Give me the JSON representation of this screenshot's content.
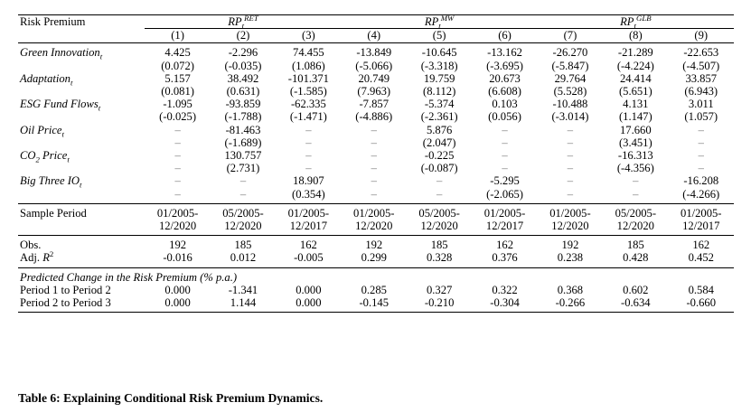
{
  "header": {
    "label": "Risk Premium",
    "groups": [
      {
        "base": "RP",
        "sup": "RET",
        "sub": "t"
      },
      {
        "base": "RP",
        "sup": "MW",
        "sub": "t"
      },
      {
        "base": "RP",
        "sup": "GLB",
        "sub": "t"
      }
    ],
    "columns": [
      "(1)",
      "(2)",
      "(3)",
      "(4)",
      "(5)",
      "(6)",
      "(7)",
      "(8)",
      "(9)"
    ]
  },
  "variables": [
    {
      "name": "Green Innovation",
      "sub": "t",
      "coef": [
        "4.425",
        "-2.296",
        "74.455",
        "-13.849",
        "-10.645",
        "-13.162",
        "-26.270",
        "-21.289",
        "-22.653"
      ],
      "tstat": [
        "(0.072)",
        "(-0.035)",
        "(1.086)",
        "(-5.066)",
        "(-3.318)",
        "(-3.695)",
        "(-5.847)",
        "(-4.224)",
        "(-4.507)"
      ]
    },
    {
      "name": "Adaptation",
      "sub": "t",
      "coef": [
        "5.157",
        "38.492",
        "-101.371",
        "20.749",
        "19.759",
        "20.673",
        "29.764",
        "24.414",
        "33.857"
      ],
      "tstat": [
        "(0.081)",
        "(0.631)",
        "(-1.585)",
        "(7.963)",
        "(8.112)",
        "(6.608)",
        "(5.528)",
        "(5.651)",
        "(6.943)"
      ]
    },
    {
      "name": "ESG Fund Flows",
      "sub": "t",
      "coef": [
        "-1.095",
        "-93.859",
        "-62.335",
        "-7.857",
        "-5.374",
        "0.103",
        "-10.488",
        "4.131",
        "3.011"
      ],
      "tstat": [
        "(-0.025)",
        "(-1.788)",
        "(-1.471)",
        "(-4.886)",
        "(-2.361)",
        "(0.056)",
        "(-3.014)",
        "(1.147)",
        "(1.057)"
      ]
    },
    {
      "name": "Oil Price",
      "sub": "t",
      "coef": [
        "–",
        "-81.463",
        "–",
        "–",
        "5.876",
        "–",
        "–",
        "17.660",
        "–"
      ],
      "tstat": [
        "–",
        "(-1.689)",
        "–",
        "–",
        "(2.047)",
        "–",
        "–",
        "(3.451)",
        "–"
      ]
    },
    {
      "name": "CO",
      "name_sub": "2",
      "name_rest": " Price",
      "sub": "t",
      "coef": [
        "–",
        "130.757",
        "–",
        "–",
        "-0.225",
        "–",
        "–",
        "-16.313",
        "–"
      ],
      "tstat": [
        "–",
        "(2.731)",
        "–",
        "–",
        "(-0.087)",
        "–",
        "–",
        "(-4.356)",
        "–"
      ]
    },
    {
      "name": "Big Three IO",
      "sub": "t",
      "coef": [
        "–",
        "–",
        "18.907",
        "–",
        "–",
        "-5.295",
        "–",
        "–",
        "-16.208"
      ],
      "tstat": [
        "–",
        "–",
        "(0.354)",
        "–",
        "–",
        "(-2.065)",
        "–",
        "–",
        "(-4.266)"
      ]
    }
  ],
  "sample": {
    "label": "Sample Period",
    "start": [
      "01/2005-",
      "05/2005-",
      "01/2005-",
      "01/2005-",
      "05/2005-",
      "01/2005-",
      "01/2005-",
      "05/2005-",
      "01/2005-"
    ],
    "end": [
      "12/2020",
      "12/2020",
      "12/2017",
      "12/2020",
      "12/2020",
      "12/2017",
      "12/2020",
      "12/2020",
      "12/2017"
    ]
  },
  "stats": {
    "obs_label": "Obs.",
    "obs": [
      "192",
      "185",
      "162",
      "192",
      "185",
      "162",
      "192",
      "185",
      "162"
    ],
    "r2_label": "Adj.",
    "r2_symbol": "R",
    "r2_sup": "2",
    "r2": [
      "-0.016",
      "0.012",
      "-0.005",
      "0.299",
      "0.328",
      "0.376",
      "0.238",
      "0.428",
      "0.452"
    ]
  },
  "predicted": {
    "heading": "Predicted Change in the Risk Premium (% p.a.)",
    "rows": [
      {
        "label": "Period 1 to Period 2",
        "values": [
          "0.000",
          "-1.341",
          "0.000",
          "0.285",
          "0.327",
          "0.322",
          "0.368",
          "0.602",
          "0.584"
        ]
      },
      {
        "label": "Period 2 to Period 3",
        "values": [
          "0.000",
          "1.144",
          "0.000",
          "-0.145",
          "-0.210",
          "-0.304",
          "-0.266",
          "-0.634",
          "-0.660"
        ]
      }
    ]
  },
  "caption": "Table 6: Explaining Conditional Risk Premium Dynamics."
}
